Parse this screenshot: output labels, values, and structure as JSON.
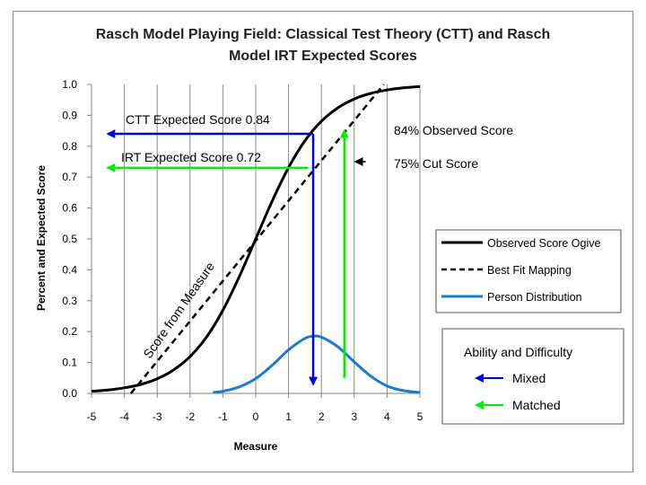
{
  "chart_data": {
    "type": "line",
    "title_line1": "Rasch Model Playing Field: Classical Test Theory (CTT) and Rasch",
    "title_line2": "Model IRT Expected Scores",
    "xlabel": "Measure",
    "ylabel": "Percent and Expected Score",
    "xlim": [
      -5,
      5
    ],
    "ylim": [
      0,
      1
    ],
    "x_ticks": [
      "-5",
      "-4",
      "-3",
      "-2",
      "-1",
      "0",
      "1",
      "2",
      "3",
      "4",
      "5"
    ],
    "y_ticks": [
      "0.0",
      "0.1",
      "0.2",
      "0.3",
      "0.4",
      "0.5",
      "0.6",
      "0.7",
      "0.8",
      "0.9",
      "1.0"
    ],
    "grid": "vertical",
    "series": [
      {
        "name": "Observed Score Ogive",
        "color": "#000000",
        "style": "solid",
        "points": [
          [
            -5,
            0.007
          ],
          [
            -4.5,
            0.011
          ],
          [
            -4,
            0.018
          ],
          [
            -3.5,
            0.029
          ],
          [
            -3,
            0.047
          ],
          [
            -2.5,
            0.076
          ],
          [
            -2,
            0.119
          ],
          [
            -1.5,
            0.182
          ],
          [
            -1,
            0.269
          ],
          [
            -0.5,
            0.378
          ],
          [
            0,
            0.5
          ],
          [
            0.5,
            0.622
          ],
          [
            1,
            0.731
          ],
          [
            1.5,
            0.818
          ],
          [
            2,
            0.881
          ],
          [
            2.5,
            0.924
          ],
          [
            3,
            0.953
          ],
          [
            3.5,
            0.971
          ],
          [
            4,
            0.982
          ],
          [
            4.5,
            0.989
          ],
          [
            5,
            0.993
          ]
        ]
      },
      {
        "name": "Best Fit Mapping",
        "color": "#000000",
        "style": "dashed",
        "points": [
          [
            -3.8,
            0.0
          ],
          [
            3.9,
            1.0
          ]
        ]
      },
      {
        "name": "Person Distribution",
        "color": "#1f78c8",
        "style": "solid",
        "points": [
          [
            -1.3,
            0.003
          ],
          [
            -1,
            0.007
          ],
          [
            -0.5,
            0.021
          ],
          [
            0,
            0.048
          ],
          [
            0.5,
            0.091
          ],
          [
            1,
            0.141
          ],
          [
            1.5,
            0.178
          ],
          [
            1.75,
            0.185
          ],
          [
            2,
            0.182
          ],
          [
            2.5,
            0.151
          ],
          [
            3,
            0.102
          ],
          [
            3.5,
            0.056
          ],
          [
            4,
            0.024
          ],
          [
            4.5,
            0.009
          ],
          [
            5,
            0.003
          ]
        ]
      }
    ],
    "arrows": [
      {
        "group": "Mixed",
        "color": "#0000cc",
        "from": [
          1.75,
          0.84
        ],
        "to": [
          -4.5,
          0.84
        ]
      },
      {
        "group": "Mixed",
        "color": "#0000cc",
        "from": [
          1.75,
          0.84
        ],
        "to": [
          1.75,
          0.03
        ]
      },
      {
        "group": "Matched",
        "color": "#00ee00",
        "from": [
          2.7,
          0.05
        ],
        "to": [
          2.7,
          0.85
        ]
      },
      {
        "group": "Matched",
        "color": "#00ee00",
        "from": [
          1.6,
          0.73
        ],
        "to": [
          -4.5,
          0.73
        ]
      },
      {
        "group": "Cut",
        "color": "#000000",
        "from": [
          3.35,
          0.75
        ],
        "to": [
          3.05,
          0.75
        ]
      }
    ],
    "annotations": {
      "ctt_expected": "CTT Expected Score  0.84",
      "irt_expected": "IRT Expected Score  0.72",
      "observed_84": "84% Observed Score",
      "cut_75": "75% Cut Score",
      "score_from_measure": "Score from Measure"
    },
    "legend": {
      "placement": "right",
      "entries": [
        "Observed Score Ogive",
        "Best Fit Mapping",
        "Person Distribution"
      ]
    },
    "legend2": {
      "title": "Ability and Difficulty",
      "entries": [
        {
          "label": "Mixed",
          "color": "#0000cc"
        },
        {
          "label": "Matched",
          "color": "#00ee00"
        }
      ]
    }
  }
}
